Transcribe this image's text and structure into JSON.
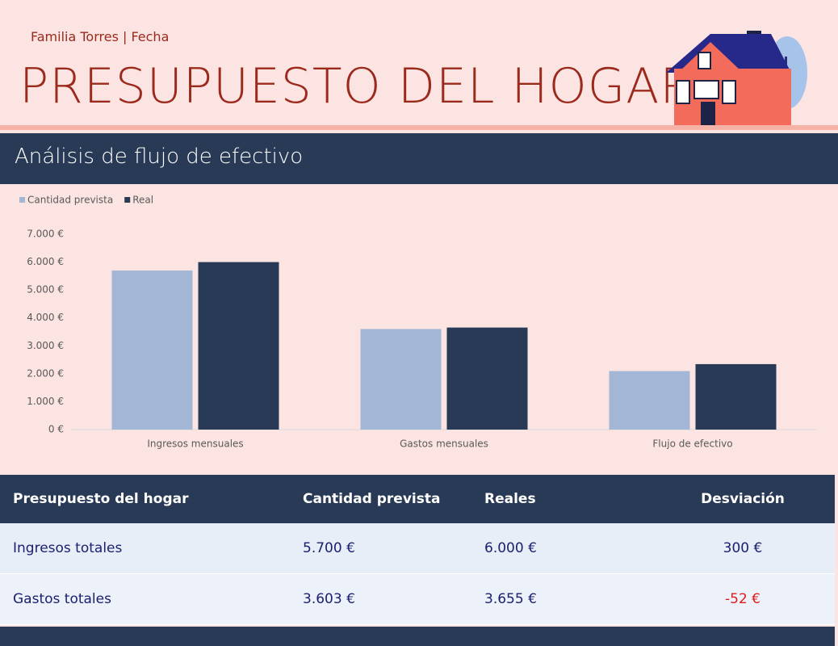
{
  "header": {
    "subtitle": "Familia Torres | Fecha",
    "title": "PRESUPUESTO DEL HOGAR"
  },
  "section": {
    "title": "Análisis de flujo de efectivo"
  },
  "chart_data": {
    "type": "bar",
    "categories": [
      "Ingresos mensuales",
      "Gastos mensuales",
      "Flujo de efectivo"
    ],
    "series": [
      {
        "name": "Cantidad prevista",
        "color": "#a3b6d6",
        "values": [
          5700,
          3603,
          2097
        ]
      },
      {
        "name": "Real",
        "color": "#283a56",
        "values": [
          6000,
          3655,
          2345
        ]
      }
    ],
    "ylim": [
      0,
      7000
    ],
    "yticks": [
      {
        "value": 0,
        "label": "0 €"
      },
      {
        "value": 1000,
        "label": "1.000 €"
      },
      {
        "value": 2000,
        "label": "2.000 €"
      },
      {
        "value": 3000,
        "label": "3.000 €"
      },
      {
        "value": 4000,
        "label": "4.000 €"
      },
      {
        "value": 5000,
        "label": "5.000 €"
      },
      {
        "value": 6000,
        "label": "6.000 €"
      },
      {
        "value": 7000,
        "label": "7.000 €"
      }
    ],
    "grid": false,
    "legend": "top-left"
  },
  "table": {
    "header": [
      "Presupuesto del hogar",
      "Cantidad prevista",
      "Reales",
      "Desviación"
    ],
    "rows": [
      [
        "Ingresos totales",
        "5.700 €",
        "6.000 €",
        "300 €"
      ],
      [
        "Gastos totales",
        "3.603 €",
        "3.655 €",
        "-52 €"
      ]
    ]
  }
}
